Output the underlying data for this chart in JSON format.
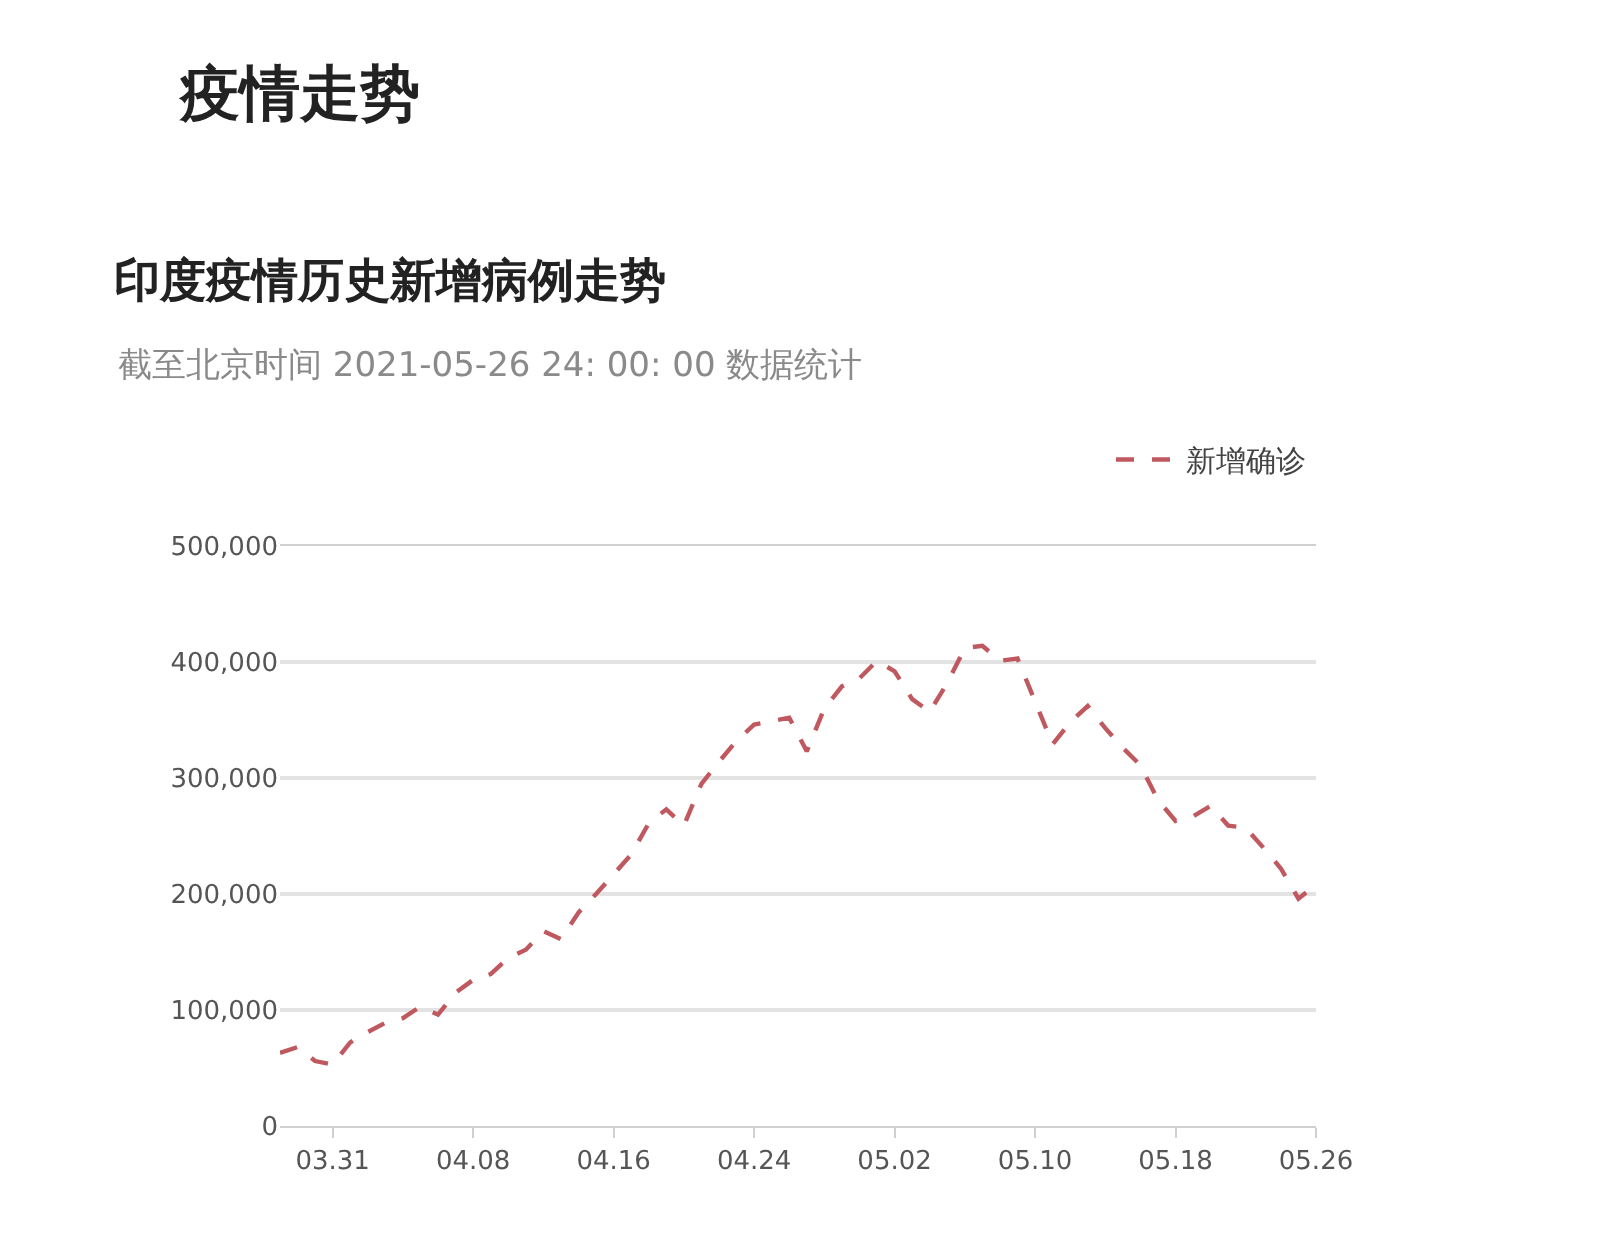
{
  "chart_data": {
    "type": "line",
    "title": "印度疫情历史新增病例走势",
    "subtitle": "截至北京时间 2021-05-26 24: 00: 00 数据统计",
    "annotations": [
      "疫情走势"
    ],
    "x": [
      "--03-28",
      "--03-29",
      "--03-30",
      "--03-31",
      "--04-01",
      "--04-02",
      "--04-03",
      "--04-04",
      "--04-05",
      "--04-06",
      "--04-07",
      "--04-08",
      "--04-09",
      "--04-10",
      "--04-11",
      "--04-12",
      "--04-13",
      "--04-14",
      "--04-15",
      "--04-16",
      "--04-17",
      "--04-18",
      "--04-19",
      "--04-20",
      "--04-21",
      "--04-22",
      "--04-23",
      "--04-24",
      "--04-25",
      "--04-26",
      "--04-27",
      "--04-28",
      "--04-29",
      "--04-30",
      "--05-01",
      "--05-02",
      "--05-03",
      "--05-04",
      "--05-05",
      "--05-06",
      "--05-07",
      "--05-08",
      "--05-09",
      "--05-10",
      "--05-11",
      "--05-12",
      "--05-13",
      "--05-14",
      "--05-15",
      "--05-16",
      "--05-17",
      "--05-18",
      "--05-19",
      "--05-20",
      "--05-21",
      "--05-22",
      "--05-23",
      "--05-24",
      "--05-25",
      "--05-26"
    ],
    "series": [
      {
        "name": "新增确诊",
        "color": "#c0595f",
        "values": [
          63000,
          68000,
          56000,
          53000,
          72000,
          81000,
          89000,
          93000,
          103000,
          96000,
          115000,
          126000,
          131000,
          145000,
          152000,
          168000,
          161000,
          184000,
          200000,
          217000,
          234000,
          261000,
          273000,
          259000,
          295000,
          314000,
          332000,
          346000,
          349000,
          352000,
          323000,
          360000,
          379000,
          386000,
          401000,
          392000,
          368000,
          357000,
          382000,
          412000,
          414000,
          401000,
          403000,
          366000,
          329000,
          348000,
          362000,
          343000,
          326000,
          311000,
          281000,
          263000,
          267000,
          276000,
          259000,
          257000,
          240000,
          222000,
          196000,
          208000
        ]
      }
    ],
    "xlim": [
      "--03-28",
      "--05-26"
    ],
    "xticks": [
      {
        "value": "--03-31",
        "label": "03.31"
      },
      {
        "value": "--04-08",
        "label": "04.08"
      },
      {
        "value": "--04-16",
        "label": "04.16"
      },
      {
        "value": "--04-24",
        "label": "04.24"
      },
      {
        "value": "--05-02",
        "label": "05.02"
      },
      {
        "value": "--05-10",
        "label": "05.10"
      },
      {
        "value": "--05-18",
        "label": "05.18"
      },
      {
        "value": "--05-26",
        "label": "05.26"
      }
    ],
    "ylim": [
      0,
      500000
    ],
    "yticks": [
      0,
      {
        "value": 100000,
        "label": "100,000"
      },
      {
        "value": 200000,
        "label": "200,000"
      },
      {
        "value": 300000,
        "label": "300,000"
      },
      {
        "value": 400000,
        "label": "400,000"
      },
      {
        "value": 500000,
        "label": "500,000"
      }
    ],
    "grid": "y",
    "legend": "top right",
    "marker": "none",
    "line_style": "dashed"
  }
}
